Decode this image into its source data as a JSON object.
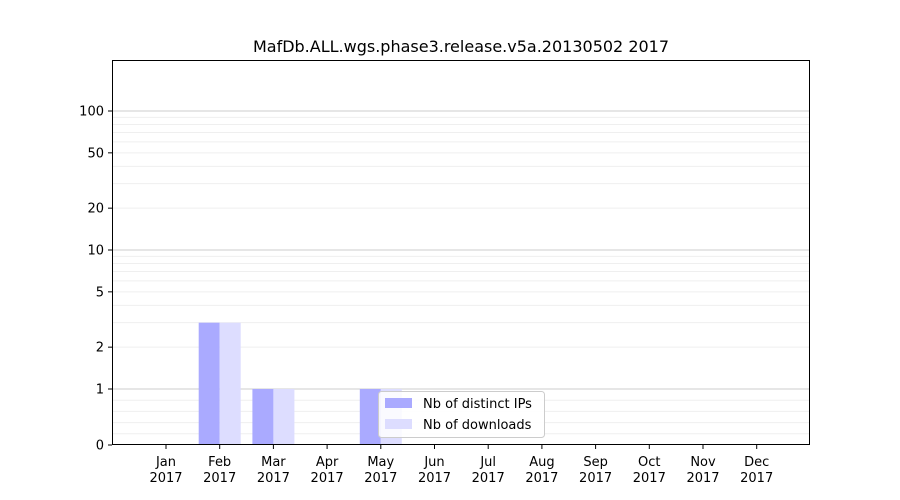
{
  "chart_data": {
    "type": "bar",
    "title": "MafDb.ALL.wgs.phase3.release.v5a.20130502 2017",
    "xlabel": "",
    "ylabel": "",
    "yscale": "symlog",
    "yticks": [
      0,
      1,
      2,
      5,
      10,
      20,
      50,
      100
    ],
    "categories": [
      [
        "Jan",
        "2017"
      ],
      [
        "Feb",
        "2017"
      ],
      [
        "Mar",
        "2017"
      ],
      [
        "Apr",
        "2017"
      ],
      [
        "May",
        "2017"
      ],
      [
        "Jun",
        "2017"
      ],
      [
        "Jul",
        "2017"
      ],
      [
        "Aug",
        "2017"
      ],
      [
        "Sep",
        "2017"
      ],
      [
        "Oct",
        "2017"
      ],
      [
        "Nov",
        "2017"
      ],
      [
        "Dec",
        "2017"
      ]
    ],
    "series": [
      {
        "name": "Nb of distinct IPs",
        "color": "#aaaaff",
        "values": [
          0,
          3,
          1,
          0,
          1,
          0,
          0,
          0,
          0,
          0,
          0,
          0
        ]
      },
      {
        "name": "Nb of downloads",
        "color": "#ddddff",
        "values": [
          0,
          3,
          1,
          0,
          1,
          0,
          0,
          0,
          0,
          0,
          0,
          0
        ]
      }
    ],
    "grid": true,
    "legend": "lower-center"
  }
}
